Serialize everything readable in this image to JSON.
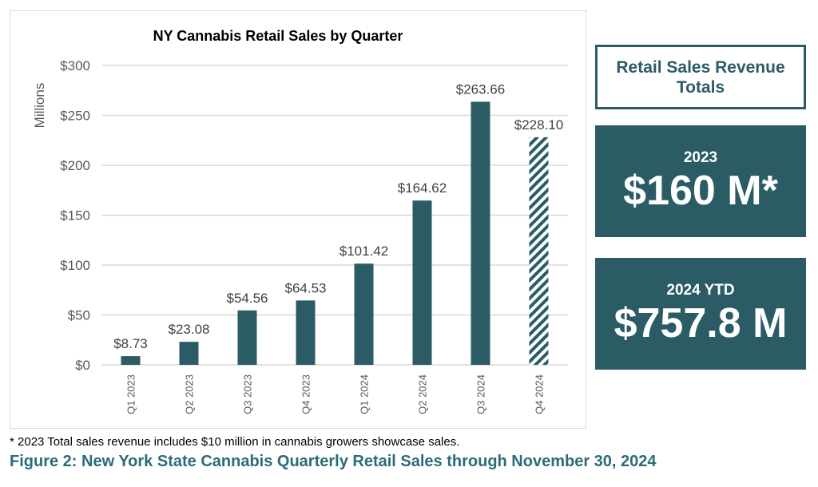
{
  "chart_data": {
    "type": "bar",
    "title": "NY Cannabis Retail Sales by Quarter",
    "ylabel": "Millions",
    "xlabel": "",
    "ylim": [
      0,
      300
    ],
    "yticks": [
      "$0",
      "$50",
      "$100",
      "$150",
      "$200",
      "$250",
      "$300"
    ],
    "ytick_values": [
      0,
      50,
      100,
      150,
      200,
      250,
      300
    ],
    "grid": true,
    "categories": [
      "Q1 2023",
      "Q2 2023",
      "Q3 2023",
      "Q4 2023",
      "Q1 2024",
      "Q2 2024",
      "Q3 2024",
      "Q4 2024"
    ],
    "values": [
      8.73,
      23.08,
      54.56,
      64.53,
      101.42,
      164.62,
      263.66,
      228.1
    ],
    "data_labels": [
      "$8.73",
      "$23.08",
      "$54.56",
      "$64.53",
      "$101.42",
      "$164.62",
      "$263.66",
      "$228.10"
    ],
    "hatched": [
      false,
      false,
      false,
      false,
      false,
      false,
      false,
      true
    ],
    "bar_color": "#2b5c66"
  },
  "summary": {
    "title": "Retail Sales Revenue Totals",
    "stats": [
      {
        "label": "2023",
        "value": "$160 M*"
      },
      {
        "label": "2024 YTD",
        "value": "$757.8 M"
      }
    ]
  },
  "footnote": "* 2023 Total sales revenue includes $10 million in cannabis growers showcase sales.",
  "caption": "Figure 2: New York State Cannabis Quarterly Retail Sales through November 30, 2024"
}
